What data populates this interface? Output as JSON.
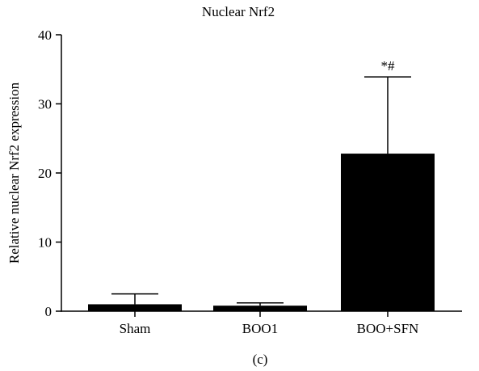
{
  "chart_data": {
    "type": "bar",
    "title": "Nuclear Nrf2",
    "xlabel": "",
    "ylabel": "Relative nuclear Nrf2 expression",
    "categories": [
      "Sham",
      "BOO1",
      "BOO+SFN"
    ],
    "values": [
      1.0,
      0.8,
      22.8
    ],
    "error_upper": [
      2.5,
      1.2,
      33.9
    ],
    "annotations": [
      "",
      "",
      "*#"
    ],
    "ylim": [
      0,
      40
    ],
    "yticks": [
      0,
      10,
      20,
      30,
      40
    ],
    "bar_color": "#000000",
    "grid": false,
    "legend": "none",
    "panel_label": "(c)"
  }
}
